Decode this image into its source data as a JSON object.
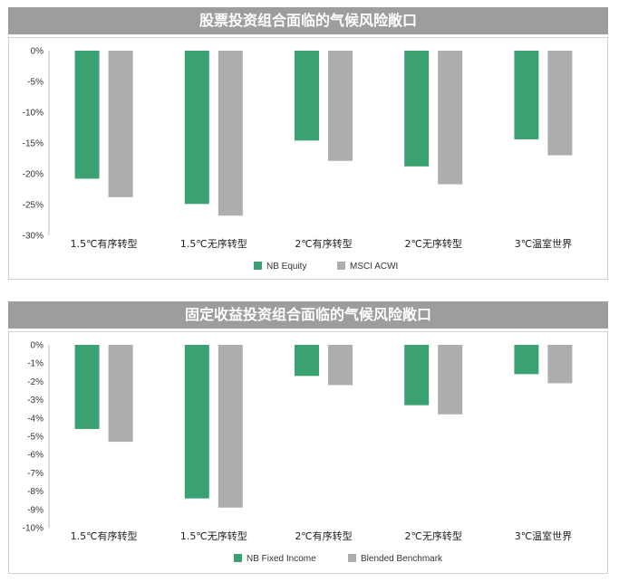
{
  "colors": {
    "nb": "#3aa272",
    "benchmark": "#adadad",
    "banner": "#9d9d9d"
  },
  "chart_data": [
    {
      "type": "bar",
      "title": "股票投资组合面临的气候风险敞口",
      "categories": [
        "1.5℃有序转型",
        "1.5℃无序转型",
        "2℃有序转型",
        "2℃无序转型",
        "3℃温室世界"
      ],
      "ylim": [
        -30,
        0
      ],
      "yticks": [
        0,
        -5,
        -10,
        -15,
        -20,
        -25,
        -30
      ],
      "ytick_labels": [
        "0%",
        "-5%",
        "-10%",
        "-15%",
        "-20%",
        "-25%",
        "-30%"
      ],
      "series": [
        {
          "name": "NB Equity",
          "values": [
            -20.8,
            -24.9,
            -14.6,
            -18.8,
            -14.4
          ]
        },
        {
          "name": "MSCI ACWI",
          "values": [
            -23.8,
            -26.8,
            -17.9,
            -21.7,
            -17.0
          ]
        }
      ],
      "legend": "bottom"
    },
    {
      "type": "bar",
      "title": "固定收益投资组合面临的气候风险敞口",
      "categories": [
        "1.5℃有序转型",
        "1.5℃无序转型",
        "2℃有序转型",
        "2℃无序转型",
        "3℃温室世界"
      ],
      "ylim": [
        -10,
        0
      ],
      "yticks": [
        0,
        -1,
        -2,
        -3,
        -4,
        -5,
        -6,
        -7,
        -8,
        -9,
        -10
      ],
      "ytick_labels": [
        "0%",
        "-1%",
        "-2%",
        "-3%",
        "-4%",
        "-5%",
        "-6%",
        "-7%",
        "-8%",
        "-9%",
        "-10%"
      ],
      "series": [
        {
          "name": "NB Fixed Income",
          "values": [
            -4.6,
            -8.4,
            -1.7,
            -3.3,
            -1.6
          ]
        },
        {
          "name": "Blended Benchmark",
          "values": [
            -5.3,
            -8.9,
            -2.2,
            -3.8,
            -2.1
          ]
        }
      ],
      "legend": "bottom"
    }
  ]
}
